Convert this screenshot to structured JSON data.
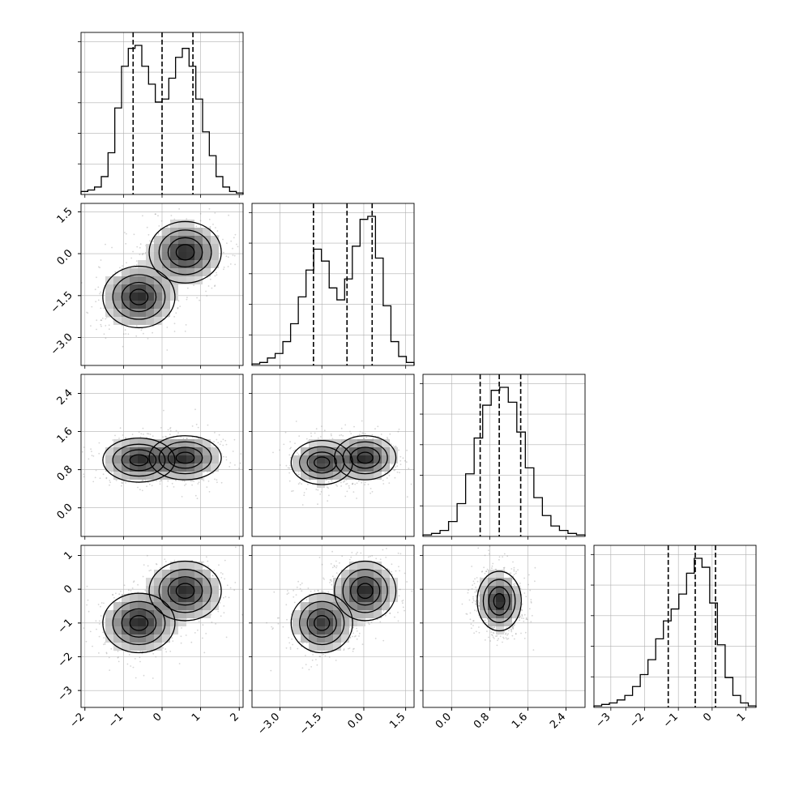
{
  "chart_data": {
    "type": "corner",
    "title": "",
    "params": [
      {
        "index": 0,
        "range": [
          -2.1,
          2.1
        ],
        "ticks": [
          -2,
          -1,
          0,
          1,
          2
        ],
        "tick_labels": [
          "−2",
          "−1",
          "0",
          "1",
          "2"
        ],
        "mean": 0.0,
        "std": 0.85,
        "quantiles": [
          -0.75,
          0.0,
          0.8
        ]
      },
      {
        "index": 1,
        "range": [
          -4.0,
          1.8
        ],
        "ticks": [
          -3.0,
          -1.5,
          0.0,
          1.5
        ],
        "tick_labels": [
          "−3.0",
          "−1.5",
          "0.0",
          "1.5"
        ],
        "mean": -0.75,
        "std": 1.0,
        "quantiles": [
          -1.8,
          -0.6,
          0.3
        ]
      },
      {
        "index": 2,
        "range": [
          -0.6,
          2.8
        ],
        "ticks": [
          0.0,
          0.8,
          1.6,
          2.4
        ],
        "tick_labels": [
          "0.0",
          "0.8",
          "1.6",
          "2.4"
        ],
        "mean": 1.05,
        "std": 0.42,
        "quantiles": [
          0.6,
          1.0,
          1.45
        ]
      },
      {
        "index": 3,
        "range": [
          -3.5,
          1.3
        ],
        "ticks": [
          -3,
          -2,
          -1,
          0,
          1
        ],
        "tick_labels": [
          "−3",
          "−2",
          "−1",
          "0",
          "1"
        ],
        "mean": -0.45,
        "std": 0.8,
        "quantiles": [
          -1.3,
          -0.5,
          0.1
        ]
      }
    ],
    "histograms": [
      {
        "param": 0,
        "bins_range": [
          -2.1,
          2.1
        ],
        "heights": [
          0.02,
          0.03,
          0.05,
          0.12,
          0.28,
          0.58,
          0.86,
          0.98,
          1.0,
          0.86,
          0.74,
          0.62,
          0.64,
          0.78,
          0.92,
          0.98,
          0.86,
          0.64,
          0.42,
          0.26,
          0.12,
          0.05,
          0.02,
          0.01
        ]
      },
      {
        "param": 1,
        "bins_range": [
          -4.0,
          1.8
        ],
        "heights": [
          0.01,
          0.02,
          0.05,
          0.08,
          0.16,
          0.28,
          0.46,
          0.64,
          0.78,
          0.7,
          0.52,
          0.44,
          0.58,
          0.8,
          0.98,
          1.0,
          0.72,
          0.4,
          0.16,
          0.06,
          0.02
        ]
      },
      {
        "param": 2,
        "bins_range": [
          -0.6,
          2.8
        ],
        "heights": [
          0.01,
          0.02,
          0.04,
          0.1,
          0.22,
          0.42,
          0.66,
          0.88,
          0.98,
          1.0,
          0.9,
          0.7,
          0.46,
          0.26,
          0.14,
          0.07,
          0.04,
          0.02,
          0.01
        ]
      },
      {
        "param": 3,
        "bins_range": [
          -3.5,
          1.3
        ],
        "heights": [
          0.01,
          0.02,
          0.03,
          0.05,
          0.08,
          0.14,
          0.22,
          0.32,
          0.46,
          0.58,
          0.66,
          0.76,
          0.9,
          1.0,
          0.94,
          0.7,
          0.42,
          0.2,
          0.08,
          0.03,
          0.01
        ]
      }
    ],
    "pairs": [
      {
        "x": 0,
        "y": 1,
        "modes": [
          {
            "x": -0.6,
            "y": -1.55,
            "w": 1.0
          },
          {
            "x": 0.6,
            "y": 0.05,
            "w": 1.0
          }
        ]
      },
      {
        "x": 0,
        "y": 2,
        "modes": [
          {
            "x": -0.6,
            "y": 1.0,
            "w": 1.0
          },
          {
            "x": 0.6,
            "y": 1.05,
            "w": 1.0
          }
        ]
      },
      {
        "x": 1,
        "y": 2,
        "modes": [
          {
            "x": -1.5,
            "y": 0.95,
            "w": 0.9
          },
          {
            "x": 0.05,
            "y": 1.05,
            "w": 1.0
          }
        ]
      },
      {
        "x": 0,
        "y": 3,
        "modes": [
          {
            "x": -0.6,
            "y": -1.0,
            "w": 1.0
          },
          {
            "x": 0.6,
            "y": -0.05,
            "w": 1.0
          }
        ]
      },
      {
        "x": 1,
        "y": 3,
        "modes": [
          {
            "x": -1.5,
            "y": -1.0,
            "w": 0.9
          },
          {
            "x": 0.05,
            "y": -0.05,
            "w": 1.0
          }
        ]
      },
      {
        "x": 2,
        "y": 3,
        "modes": [
          {
            "x": 1.0,
            "y": -0.35,
            "w": 1.0
          }
        ]
      }
    ],
    "grid": true,
    "colors": {
      "ink": "#000000",
      "grid": "#b0b0b0",
      "density": "#000000"
    }
  }
}
